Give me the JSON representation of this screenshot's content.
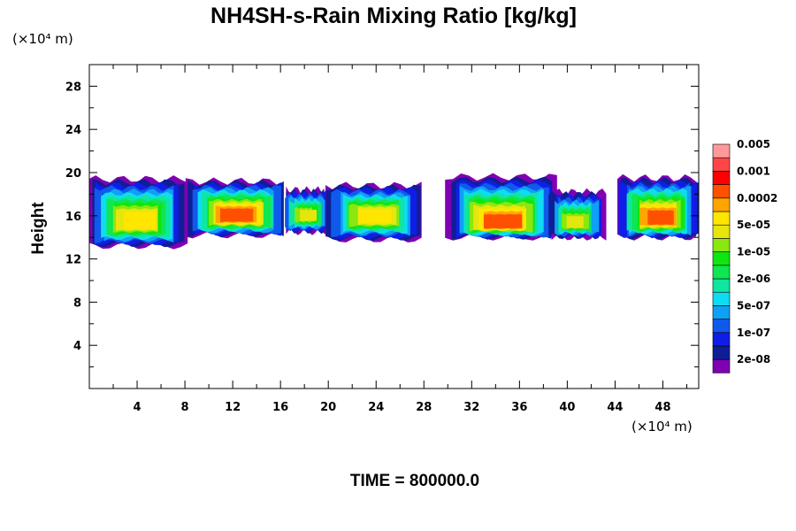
{
  "chart_data": {
    "type": "heatmap",
    "title": "NH4SH-s-Rain Mixing Ratio [kg/kg]",
    "ylabel": "Height",
    "xlabel": "",
    "x_unit_label": "(×10⁴ m)",
    "y_unit_label": "(×10⁴ m)",
    "xlim": [
      0,
      51
    ],
    "ylim": [
      0,
      30
    ],
    "x_ticks": [
      4,
      8,
      12,
      16,
      20,
      24,
      28,
      32,
      36,
      40,
      44,
      48
    ],
    "y_ticks": [
      4,
      8,
      12,
      16,
      20,
      24,
      28
    ],
    "footer": "TIME = 800000.0",
    "colorbar": {
      "colors": [
        "#7f00b2",
        "#0f1e96",
        "#0f1ee6",
        "#0f5aeb",
        "#0fa0f5",
        "#0fdcf0",
        "#0fe6a0",
        "#0fe650",
        "#0fe60f",
        "#8ce60f",
        "#e6e60f",
        "#ffe600",
        "#ffa500",
        "#ff5000",
        "#ff0000",
        "#ff4646",
        "#ff9999"
      ],
      "labels": [
        "2e-08",
        "1e-07",
        "5e-07",
        "2e-06",
        "1e-05",
        "5e-05",
        "0.0002",
        "0.001",
        "0.005"
      ]
    },
    "cells": [
      {
        "x0": 0,
        "x1": 8.0,
        "y0": 13.2,
        "y1": 19.4,
        "core": 15.5,
        "peak": 11
      },
      {
        "x0": 8.3,
        "x1": 16.5,
        "y0": 14.2,
        "y1": 19.2,
        "core": 16.0,
        "peak": 13
      },
      {
        "x0": 16.3,
        "x1": 20.0,
        "y0": 14.5,
        "y1": 18.4,
        "core": 16.0,
        "peak": 10
      },
      {
        "x0": 19.8,
        "x1": 27.8,
        "y0": 13.8,
        "y1": 18.8,
        "core": 16.0,
        "peak": 11
      },
      {
        "x0": 30.0,
        "x1": 39.0,
        "y0": 14.0,
        "y1": 19.6,
        "core": 15.2,
        "peak": 13
      },
      {
        "x0": 38.5,
        "x1": 43.0,
        "y0": 14.0,
        "y1": 18.2,
        "core": 15.3,
        "peak": 10
      },
      {
        "x0": 44.2,
        "x1": 51.0,
        "y0": 14.0,
        "y1": 19.5,
        "core": 15.7,
        "peak": 13
      }
    ]
  }
}
